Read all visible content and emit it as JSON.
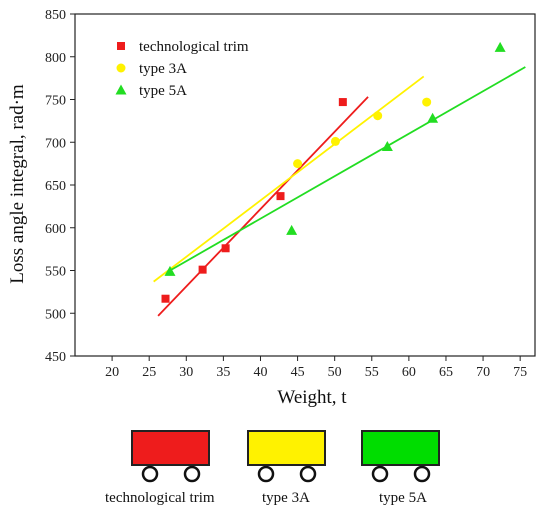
{
  "chart_data": {
    "type": "scatter",
    "title": "",
    "xlabel": "Weight, t",
    "ylabel": "Loss angle integral, rad·m",
    "xlim": [
      15,
      77
    ],
    "ylim": [
      450,
      850
    ],
    "x_ticks": [
      20,
      25,
      30,
      35,
      40,
      45,
      50,
      55,
      60,
      65,
      70,
      75
    ],
    "y_ticks": [
      450,
      500,
      550,
      600,
      650,
      700,
      750,
      800,
      850
    ],
    "grid": false,
    "legend_position": "top-left",
    "series": [
      {
        "name": "technological trim",
        "color": "#ee1c1c",
        "marker": "square",
        "points": [
          [
            27.2,
            517
          ],
          [
            32.2,
            551
          ],
          [
            35.3,
            576
          ],
          [
            42.7,
            637
          ],
          [
            51.1,
            747
          ]
        ],
        "fit_line": [
          [
            26.2,
            497
          ],
          [
            54.5,
            753
          ]
        ]
      },
      {
        "name": "type 3A",
        "color": "#fff200",
        "marker": "circle",
        "points": [
          [
            45.0,
            675
          ],
          [
            50.1,
            701
          ],
          [
            55.8,
            731
          ],
          [
            62.4,
            747
          ]
        ],
        "fit_line": [
          [
            25.6,
            537
          ],
          [
            62.0,
            777
          ]
        ]
      },
      {
        "name": "type 5A",
        "color": "#22dd22",
        "marker": "triangle",
        "points": [
          [
            27.8,
            549
          ],
          [
            44.2,
            597
          ],
          [
            57.1,
            695
          ],
          [
            63.2,
            728
          ],
          [
            72.3,
            811
          ]
        ],
        "fit_line": [
          [
            27.6,
            549
          ],
          [
            75.7,
            788
          ]
        ]
      }
    ]
  },
  "wagons": [
    {
      "label": "technological trim",
      "color": "#ee1c1c"
    },
    {
      "label": "type 3A",
      "color": "#fff200"
    },
    {
      "label": "type 5A",
      "color": "#00dd00"
    }
  ]
}
